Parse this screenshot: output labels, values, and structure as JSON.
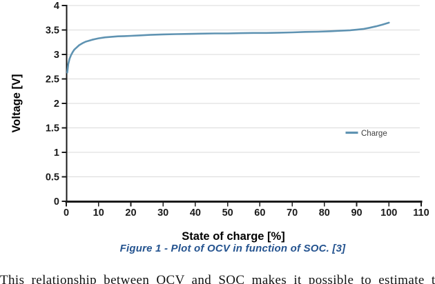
{
  "caption": "Figure 1 - Plot of OCV in function of SOC. [3]",
  "body_text_partial": "This relationship between OCV and SOC makes it possible to estimate the",
  "colors": {
    "series_line": "#5F93B2",
    "gridline": "#D9D9D9",
    "axis_line": "#1a1a1a",
    "tick_label": "#1a1a1a",
    "legend_text": "#404040",
    "caption_blue": "#24538F",
    "body_text": "#111111"
  },
  "legend": {
    "label": "Charge"
  },
  "chart_data": {
    "type": "line",
    "title": "",
    "xlabel": "State of charge [%]",
    "ylabel": "Voltage [V]",
    "xlim": [
      0,
      110
    ],
    "ylim": [
      0,
      4
    ],
    "x_ticks": [
      0,
      10,
      20,
      30,
      40,
      50,
      60,
      70,
      80,
      90,
      100,
      110
    ],
    "y_ticks": [
      0,
      0.5,
      1,
      1.5,
      2,
      2.5,
      3,
      3.5,
      4
    ],
    "grid": "horizontal-only",
    "legend_position": "middle-right",
    "series": [
      {
        "name": "Charge",
        "color": "#5F93B2",
        "x": [
          0.3,
          0.6,
          1,
          1.5,
          2,
          2.5,
          3,
          4,
          5,
          6,
          7,
          8,
          9,
          10,
          12,
          14,
          16,
          18,
          20,
          23,
          26,
          30,
          34,
          38,
          42,
          46,
          50,
          54,
          58,
          62,
          66,
          70,
          74,
          78,
          82,
          85,
          88,
          90,
          92,
          94,
          96,
          98,
          100
        ],
        "y": [
          2.63,
          2.8,
          2.91,
          2.99,
          3.05,
          3.1,
          3.13,
          3.19,
          3.23,
          3.26,
          3.28,
          3.3,
          3.315,
          3.33,
          3.35,
          3.36,
          3.37,
          3.375,
          3.38,
          3.39,
          3.4,
          3.41,
          3.415,
          3.42,
          3.425,
          3.43,
          3.43,
          3.435,
          3.44,
          3.44,
          3.445,
          3.45,
          3.46,
          3.465,
          3.475,
          3.485,
          3.495,
          3.505,
          3.52,
          3.545,
          3.575,
          3.61,
          3.65
        ]
      }
    ]
  }
}
